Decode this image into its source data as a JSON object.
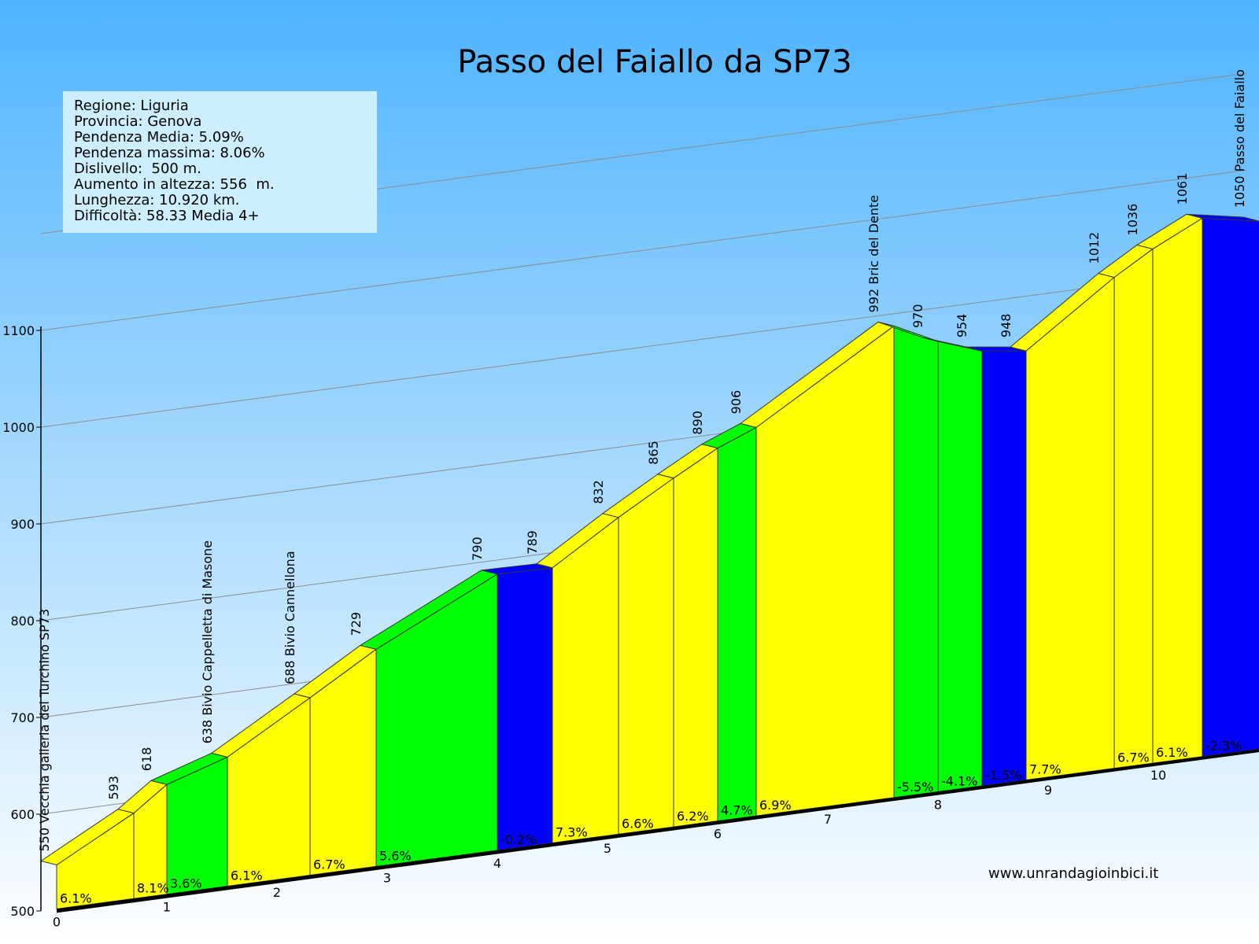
{
  "title": "Passo del Faiallo da SP73",
  "info": {
    "lines": [
      "Regione: Liguria",
      "Provincia: Genova",
      "Pendenza Media: 5.09%",
      "Pendenza massima: 8.06%",
      "Dislivello:  500 m.",
      "Aumento in altezza: 556  m.",
      "Lunghezza: 10.920 km.",
      "Difficoltà: 58.33 Media 4+"
    ]
  },
  "credit": "www.unrandagioinbici.it",
  "colors": {
    "yellow": "#ffff00",
    "green": "#00ff00",
    "blue": "#0000ff",
    "sky_top": "#4fb4ff",
    "sky_bottom": "#ffffff",
    "info_bg": "#cdeefe"
  },
  "chart_data": {
    "type": "area",
    "title": "Passo del Faiallo da SP73",
    "ylim": [
      500,
      1100
    ],
    "y_ticks": [
      "500",
      "600",
      "700",
      "800",
      "900",
      "1000",
      "1100"
    ],
    "x_ticks": [
      "0",
      "1",
      "2",
      "3",
      "4",
      "5",
      "6",
      "7",
      "8",
      "9",
      "10"
    ],
    "xlim": [
      0,
      11.2
    ],
    "points": [
      {
        "x": 0,
        "elev": 550,
        "label": "550 Vecchia galleria del Turchino SP73"
      },
      {
        "x": 0.7,
        "elev": 593,
        "label": "593"
      },
      {
        "x": 1.0,
        "elev": 618,
        "label": "618"
      },
      {
        "x": 1.55,
        "elev": 638,
        "label": "638 Bivio Cappelletta di Masone"
      },
      {
        "x": 2.3,
        "elev": 688,
        "label": "688 Bivio Cannellona"
      },
      {
        "x": 2.9,
        "elev": 729,
        "label": "729"
      },
      {
        "x": 4.0,
        "elev": 790,
        "label": "790"
      },
      {
        "x": 4.5,
        "elev": 789,
        "label": "789"
      },
      {
        "x": 5.1,
        "elev": 832,
        "label": "832"
      },
      {
        "x": 5.6,
        "elev": 865,
        "label": "865"
      },
      {
        "x": 6.0,
        "elev": 890,
        "label": "890"
      },
      {
        "x": 6.35,
        "elev": 906,
        "label": "906"
      },
      {
        "x": 7.6,
        "elev": 992,
        "label": "992 Bric del Dente"
      },
      {
        "x": 8.0,
        "elev": 970,
        "label": "970"
      },
      {
        "x": 8.4,
        "elev": 954,
        "label": "954"
      },
      {
        "x": 8.8,
        "elev": 948,
        "label": "948"
      },
      {
        "x": 9.6,
        "elev": 1012,
        "label": "1012"
      },
      {
        "x": 9.95,
        "elev": 1036,
        "label": "1036"
      },
      {
        "x": 10.4,
        "elev": 1061,
        "label": "1061"
      },
      {
        "x": 10.92,
        "elev": 1050,
        "label": "1050 Passo del Faiallo"
      }
    ],
    "segments": [
      {
        "gradient": "6.1%",
        "color": "yellow"
      },
      {
        "gradient": "8.1%",
        "color": "yellow"
      },
      {
        "gradient": "3.6%",
        "color": "green"
      },
      {
        "gradient": "6.1%",
        "color": "yellow"
      },
      {
        "gradient": "6.7%",
        "color": "yellow"
      },
      {
        "gradient": "5.6%",
        "color": "green"
      },
      {
        "gradient": "-0.2%",
        "color": "blue"
      },
      {
        "gradient": "7.3%",
        "color": "yellow"
      },
      {
        "gradient": "6.6%",
        "color": "yellow"
      },
      {
        "gradient": "6.2%",
        "color": "yellow"
      },
      {
        "gradient": "4.7%",
        "color": "green"
      },
      {
        "gradient": "6.9%",
        "color": "yellow"
      },
      {
        "gradient": "-5.5%",
        "color": "green"
      },
      {
        "gradient": "-4.1%",
        "color": "green"
      },
      {
        "gradient": "-1.5%",
        "color": "blue"
      },
      {
        "gradient": "7.7%",
        "color": "yellow"
      },
      {
        "gradient": "6.7%",
        "color": "yellow"
      },
      {
        "gradient": "6.1%",
        "color": "yellow"
      },
      {
        "gradient": "-2.3%",
        "color": "blue"
      }
    ]
  }
}
